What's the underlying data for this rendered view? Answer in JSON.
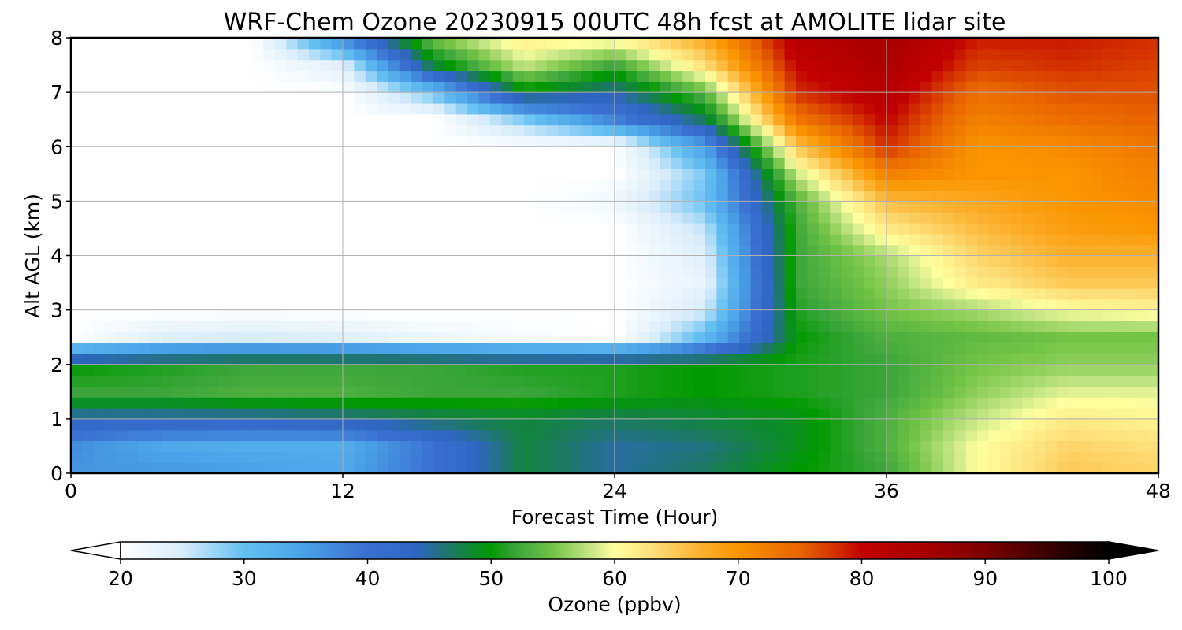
{
  "chart_data": {
    "type": "heatmap",
    "title": "WRF-Chem Ozone  20230915 00UTC 48h fcst at AMOLITE lidar site",
    "xlabel": "Forecast Time (Hour)",
    "ylabel": "Alt AGL (km)",
    "xlim": [
      0,
      48
    ],
    "ylim": [
      0,
      8
    ],
    "xticks": [
      "0",
      "12",
      "24",
      "36",
      "48"
    ],
    "xtick_values": [
      0,
      12,
      24,
      36,
      48
    ],
    "yticks": [
      "0",
      "1",
      "2",
      "3",
      "4",
      "5",
      "6",
      "7",
      "8"
    ],
    "ytick_values": [
      0,
      1,
      2,
      3,
      4,
      5,
      6,
      7,
      8
    ],
    "grid": true,
    "x": [
      0,
      4,
      8,
      12,
      16,
      20,
      24,
      28,
      32,
      36,
      40,
      44,
      48
    ],
    "y": [
      0,
      0.5,
      1,
      1.5,
      2,
      2.5,
      3,
      3.5,
      4,
      4.5,
      5,
      5.5,
      6,
      6.5,
      7,
      7.5,
      8
    ],
    "z": [
      [
        36,
        36,
        35,
        34,
        40,
        48,
        45,
        47,
        50,
        52,
        60,
        65,
        64
      ],
      [
        37,
        34,
        33,
        33,
        40,
        48,
        45,
        46,
        49,
        53,
        60,
        64,
        63
      ],
      [
        44,
        44,
        44,
        45,
        47,
        48,
        47,
        48,
        49,
        53,
        58,
        62,
        61
      ],
      [
        52,
        52,
        53,
        53,
        52,
        52,
        51,
        50,
        51,
        52,
        56,
        59,
        59
      ],
      [
        50,
        51,
        52,
        52,
        52,
        51,
        51,
        50,
        51,
        52,
        55,
        56,
        56
      ],
      [
        20,
        24,
        25,
        24,
        22,
        21,
        20,
        31,
        50,
        53,
        54,
        55,
        55
      ],
      [
        20,
        20,
        20,
        20,
        20,
        20,
        20,
        25,
        51,
        55,
        57,
        60,
        61
      ],
      [
        20,
        20,
        20,
        20,
        20,
        20,
        20,
        23,
        52,
        56,
        62,
        65,
        65
      ],
      [
        20,
        20,
        20,
        20,
        20,
        20,
        20,
        24,
        52,
        57,
        64,
        67,
        67
      ],
      [
        20,
        20,
        20,
        20,
        20,
        20,
        20,
        26,
        52,
        62,
        66,
        69,
        70
      ],
      [
        20,
        20,
        20,
        20,
        20,
        20,
        22,
        30,
        53,
        66,
        68,
        70,
        71
      ],
      [
        20,
        20,
        20,
        20,
        20,
        20,
        20,
        29,
        58,
        72,
        70,
        70,
        72
      ],
      [
        20,
        20,
        20,
        20,
        20,
        20,
        20,
        35,
        65,
        78,
        70,
        71,
        73
      ],
      [
        20,
        20,
        20,
        20,
        20,
        29,
        38,
        47,
        73,
        80,
        72,
        74,
        75
      ],
      [
        20,
        20,
        20,
        20,
        30,
        49,
        45,
        54,
        78,
        82,
        74,
        76,
        76
      ],
      [
        20,
        20,
        20,
        24,
        48,
        58,
        52,
        63,
        80,
        84,
        77,
        78,
        77
      ],
      [
        20,
        20,
        20,
        38,
        55,
        62,
        61,
        68,
        82,
        85,
        79,
        79,
        78
      ]
    ],
    "colorbar": {
      "label": "Ozone  (ppbv)",
      "min": 20,
      "max": 100,
      "extend": "both",
      "ticks": [
        "20",
        "30",
        "40",
        "50",
        "60",
        "70",
        "80",
        "90",
        "100"
      ],
      "tick_values": [
        20,
        30,
        40,
        50,
        60,
        70,
        80,
        90,
        100
      ],
      "color_stops": [
        [
          20,
          "#ffffff"
        ],
        [
          25,
          "#d8ecfa"
        ],
        [
          30,
          "#64c0f2"
        ],
        [
          35,
          "#4aa0e6"
        ],
        [
          40,
          "#3a6fd0"
        ],
        [
          44,
          "#2f66c2"
        ],
        [
          47,
          "#1a7a5a"
        ],
        [
          50,
          "#009900"
        ],
        [
          52,
          "#3ba53b"
        ],
        [
          55,
          "#73c447"
        ],
        [
          58,
          "#c5e585"
        ],
        [
          60,
          "#ffff9f"
        ],
        [
          63,
          "#fde07b"
        ],
        [
          67,
          "#fcb02e"
        ],
        [
          70,
          "#fa9500"
        ],
        [
          75,
          "#e86400"
        ],
        [
          78,
          "#d22f00"
        ],
        [
          80,
          "#c20000"
        ],
        [
          85,
          "#a80000"
        ],
        [
          90,
          "#7d0000"
        ],
        [
          95,
          "#3a0000"
        ],
        [
          100,
          "#000000"
        ]
      ]
    }
  }
}
